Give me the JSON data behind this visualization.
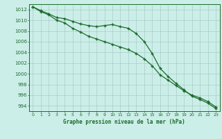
{
  "title": "Graphe pression niveau de la mer (hPa)",
  "background_color": "#cceee8",
  "grid_color": "#a8ccc8",
  "line_color": "#1a6b2a",
  "xlim": [
    0,
    23
  ],
  "ylim": [
    993.0,
    1013.0
  ],
  "xticks": [
    0,
    1,
    2,
    3,
    4,
    5,
    6,
    7,
    8,
    9,
    10,
    11,
    12,
    13,
    14,
    15,
    16,
    17,
    18,
    19,
    20,
    21,
    22,
    23
  ],
  "yticks": [
    994,
    996,
    998,
    1000,
    1002,
    1004,
    1006,
    1008,
    1010,
    1012
  ],
  "hours": [
    0,
    1,
    2,
    3,
    4,
    5,
    6,
    7,
    8,
    9,
    10,
    11,
    12,
    13,
    14,
    15,
    16,
    17,
    18,
    19,
    20,
    21,
    22,
    23
  ],
  "line1": [
    1012.5,
    1011.8,
    1011.2,
    1010.5,
    1010.3,
    1009.8,
    1009.3,
    1009.0,
    1008.8,
    1009.0,
    1009.2,
    1008.8,
    1008.5,
    1007.5,
    1006.0,
    1003.8,
    1001.0,
    999.5,
    998.2,
    997.0,
    995.8,
    995.2,
    994.5,
    993.5
  ],
  "line2": [
    1012.5,
    1011.6,
    1011.0,
    1010.0,
    1009.5,
    1008.5,
    1007.8,
    1007.0,
    1006.5,
    1006.0,
    1005.5,
    1005.0,
    1004.5,
    1003.8,
    1002.8,
    1001.5,
    999.8,
    998.8,
    997.8,
    996.8,
    996.0,
    995.5,
    994.8,
    993.8
  ]
}
